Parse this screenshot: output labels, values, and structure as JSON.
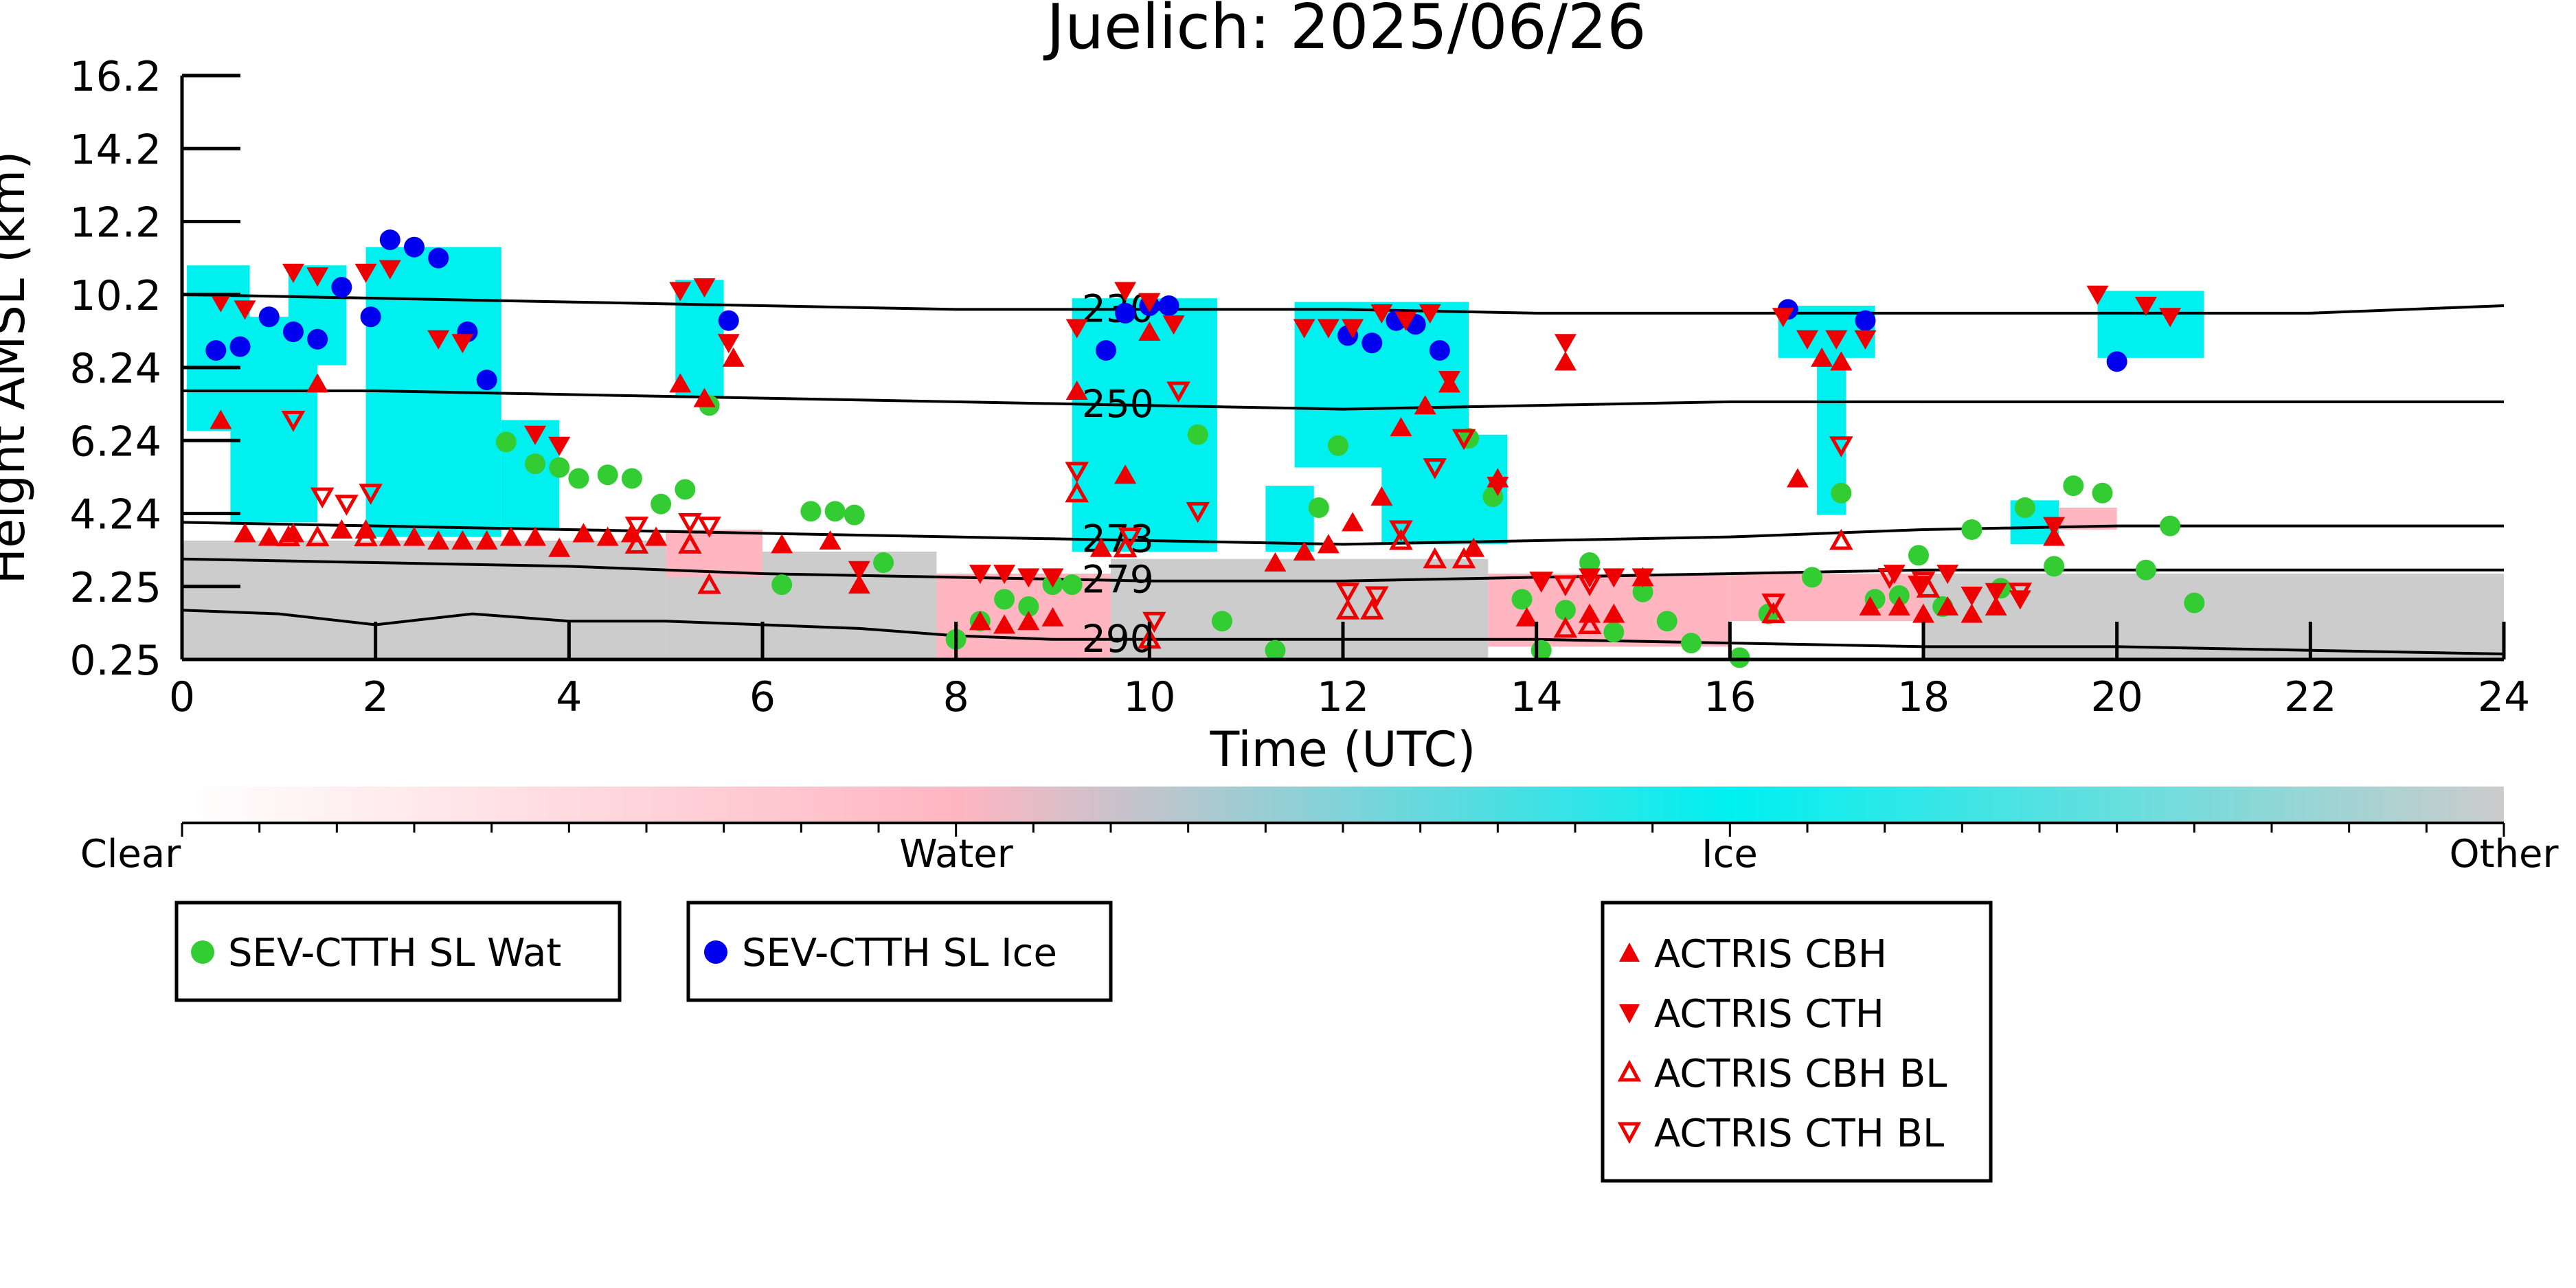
{
  "chart_data": {
    "type": "scatter",
    "title": "Juelich: 2025/06/26",
    "xlabel": "Time (UTC)",
    "ylabel": "Height AMSL (km)",
    "xlim": [
      0,
      24
    ],
    "ylim": [
      0.25,
      16.2
    ],
    "xticks": [
      0,
      2,
      4,
      6,
      8,
      10,
      12,
      14,
      16,
      18,
      20,
      22,
      24
    ],
    "yticks": [
      0.25,
      2.25,
      4.24,
      6.24,
      8.24,
      10.2,
      12.2,
      14.2,
      16.2
    ],
    "ytick_labels": [
      "0.25",
      "2.25",
      "4.24",
      "6.24",
      "8.24",
      "10.2",
      "12.2",
      "14.2",
      "16.2"
    ],
    "colors": {
      "water_marker": "#33cc33",
      "ice_marker": "#0000ee",
      "actris": "#ee0000",
      "ice_area": "#00f0f0",
      "water_area": "#ffb6c1",
      "other_area": "#cccccc"
    },
    "colorbar": {
      "labels": [
        "Clear",
        "Water",
        "Ice",
        "Other"
      ],
      "colors": [
        "#ffffff",
        "#ffb6c1",
        "#00f0f0",
        "#cccccc"
      ]
    },
    "contours": [
      {
        "label": "230",
        "x": [
          0,
          2,
          4,
          6,
          8,
          10,
          12,
          14,
          16,
          18,
          20,
          22,
          24
        ],
        "y": [
          10.2,
          10.1,
          10.0,
          9.9,
          9.8,
          9.8,
          9.8,
          9.7,
          9.7,
          9.7,
          9.7,
          9.7,
          9.9
        ]
      },
      {
        "label": "250",
        "x": [
          0,
          2,
          4,
          6,
          8,
          10,
          12,
          14,
          16,
          18,
          20,
          22,
          24
        ],
        "y": [
          7.6,
          7.6,
          7.5,
          7.4,
          7.3,
          7.2,
          7.1,
          7.2,
          7.3,
          7.3,
          7.3,
          7.3,
          7.3
        ]
      },
      {
        "label": "273",
        "x": [
          0,
          2,
          4,
          6,
          8,
          10,
          12,
          14,
          16,
          18,
          20,
          22,
          24
        ],
        "y": [
          4.0,
          3.9,
          3.8,
          3.7,
          3.6,
          3.5,
          3.4,
          3.5,
          3.6,
          3.8,
          3.9,
          3.9,
          3.9
        ]
      },
      {
        "label": "279",
        "x": [
          0,
          2,
          4,
          6,
          8,
          10,
          12,
          14,
          16,
          18,
          20,
          22,
          24
        ],
        "y": [
          3.0,
          2.9,
          2.8,
          2.6,
          2.5,
          2.4,
          2.4,
          2.5,
          2.6,
          2.7,
          2.7,
          2.7,
          2.7
        ]
      },
      {
        "label": "290",
        "x": [
          0,
          1,
          2,
          3,
          4,
          5,
          6,
          7,
          8,
          9,
          10,
          12,
          14,
          16,
          18,
          20,
          22,
          24
        ],
        "y": [
          1.6,
          1.5,
          1.2,
          1.5,
          1.3,
          1.3,
          1.2,
          1.1,
          0.9,
          0.8,
          0.8,
          0.8,
          0.8,
          0.7,
          0.6,
          0.6,
          0.5,
          0.4
        ]
      }
    ],
    "ice_regions": [
      {
        "x0": 0.05,
        "x1": 0.7,
        "y0": 6.5,
        "y1": 11.0
      },
      {
        "x0": 0.5,
        "x1": 1.4,
        "y0": 4.0,
        "y1": 9.6
      },
      {
        "x0": 1.1,
        "x1": 1.7,
        "y0": 8.3,
        "y1": 11.0
      },
      {
        "x0": 1.9,
        "x1": 3.3,
        "y0": 3.6,
        "y1": 11.5
      },
      {
        "x0": 3.3,
        "x1": 3.9,
        "y0": 3.8,
        "y1": 6.8
      },
      {
        "x0": 5.1,
        "x1": 5.6,
        "y0": 7.4,
        "y1": 10.6
      },
      {
        "x0": 9.2,
        "x1": 10.7,
        "y0": 3.2,
        "y1": 10.1
      },
      {
        "x0": 11.2,
        "x1": 11.7,
        "y0": 3.2,
        "y1": 5.0
      },
      {
        "x0": 11.5,
        "x1": 13.3,
        "y0": 5.5,
        "y1": 10.0
      },
      {
        "x0": 12.4,
        "x1": 13.7,
        "y0": 3.4,
        "y1": 6.4
      },
      {
        "x0": 16.5,
        "x1": 17.5,
        "y0": 8.5,
        "y1": 9.9
      },
      {
        "x0": 16.9,
        "x1": 17.2,
        "y0": 4.2,
        "y1": 8.7
      },
      {
        "x0": 18.9,
        "x1": 19.4,
        "y0": 3.4,
        "y1": 4.6
      },
      {
        "x0": 19.8,
        "x1": 20.9,
        "y0": 8.5,
        "y1": 10.3
      }
    ],
    "water_regions": [
      {
        "x0": 7.8,
        "x1": 9.6,
        "y0": 0.3,
        "y1": 2.6
      },
      {
        "x0": 13.5,
        "x1": 16.0,
        "y0": 0.6,
        "y1": 2.6
      },
      {
        "x0": 16.0,
        "x1": 18.0,
        "y0": 1.3,
        "y1": 2.6
      },
      {
        "x0": 5.0,
        "x1": 6.0,
        "y0": 2.5,
        "y1": 3.8
      },
      {
        "x0": 19.0,
        "x1": 20.0,
        "y0": 3.8,
        "y1": 4.4
      }
    ],
    "other_regions": [
      {
        "x0": 0.0,
        "x1": 5.0,
        "y0": 0.25,
        "y1": 3.5
      },
      {
        "x0": 5.0,
        "x1": 7.8,
        "y0": 0.25,
        "y1": 3.2
      },
      {
        "x0": 9.6,
        "x1": 13.5,
        "y0": 0.25,
        "y1": 3.0
      },
      {
        "x0": 18.0,
        "x1": 24.0,
        "y0": 0.25,
        "y1": 2.6
      }
    ],
    "series": [
      {
        "name": "SEV-CTTH SL Wat",
        "marker": "circle",
        "color": "#33cc33",
        "x": [
          3.35,
          3.65,
          3.9,
          4.1,
          4.4,
          4.65,
          4.95,
          5.2,
          5.45,
          6.2,
          6.5,
          6.75,
          6.95,
          7.25,
          8.0,
          8.25,
          8.5,
          8.75,
          9.0,
          9.2,
          10.5,
          10.75,
          11.3,
          11.75,
          11.95,
          13.3,
          13.55,
          13.85,
          14.05,
          14.3,
          14.55,
          14.8,
          15.1,
          15.35,
          15.6,
          16.1,
          16.4,
          16.85,
          17.15,
          17.5,
          17.75,
          17.95,
          18.2,
          18.5,
          18.8,
          19.05,
          19.35,
          19.55,
          19.85,
          20.3,
          20.55,
          20.8
        ],
        "y": [
          6.2,
          5.6,
          5.5,
          5.2,
          5.3,
          5.2,
          4.5,
          4.9,
          7.2,
          2.3,
          4.3,
          4.3,
          4.2,
          2.9,
          0.8,
          1.3,
          1.9,
          1.7,
          2.3,
          2.3,
          6.4,
          1.3,
          0.5,
          4.4,
          6.1,
          6.3,
          4.7,
          1.9,
          0.5,
          1.6,
          2.9,
          1.0,
          2.1,
          1.3,
          0.7,
          0.3,
          1.5,
          2.5,
          4.8,
          1.9,
          2.0,
          3.1,
          1.7,
          3.8,
          2.2,
          4.4,
          2.8,
          5.0,
          4.8,
          2.7,
          3.9,
          1.8
        ]
      },
      {
        "name": "SEV-CTTH SL Ice",
        "marker": "circle",
        "color": "#0000ee",
        "x": [
          0.35,
          0.6,
          0.9,
          1.15,
          1.4,
          1.65,
          1.95,
          2.15,
          2.4,
          2.65,
          2.95,
          3.15,
          5.65,
          9.55,
          9.75,
          10.0,
          10.2,
          12.05,
          12.3,
          12.55,
          12.75,
          13.0,
          16.6,
          17.4,
          20.0
        ],
        "y": [
          8.7,
          8.8,
          9.6,
          9.2,
          9.0,
          10.4,
          9.6,
          11.7,
          11.5,
          11.2,
          9.2,
          7.9,
          9.5,
          8.7,
          9.7,
          9.9,
          9.9,
          9.1,
          8.9,
          9.5,
          9.4,
          8.7,
          9.8,
          9.5,
          8.4
        ]
      },
      {
        "name": "ACTRIS CBH",
        "marker": "triangle-up",
        "color": "#ee0000",
        "x": [
          0.4,
          0.65,
          0.9,
          1.15,
          1.4,
          1.65,
          1.9,
          2.15,
          2.4,
          2.65,
          2.9,
          3.15,
          3.4,
          3.65,
          3.9,
          4.15,
          4.4,
          4.65,
          4.9,
          5.15,
          5.4,
          5.7,
          6.2,
          6.7,
          7.0,
          8.25,
          8.5,
          8.75,
          9.0,
          9.25,
          9.5,
          9.75,
          10.0,
          11.3,
          11.6,
          11.85,
          12.1,
          12.4,
          12.6,
          12.85,
          13.1,
          13.35,
          13.6,
          13.9,
          14.3,
          14.55,
          14.8,
          15.1,
          16.7,
          16.95,
          17.15,
          17.45,
          17.75,
          18.0,
          18.25,
          18.5,
          18.75,
          19.35
        ],
        "y": [
          6.8,
          3.7,
          3.6,
          3.7,
          7.8,
          3.8,
          3.8,
          3.6,
          3.6,
          3.5,
          3.5,
          3.5,
          3.6,
          3.6,
          3.3,
          3.7,
          3.6,
          3.7,
          3.6,
          7.8,
          7.4,
          8.5,
          3.4,
          3.5,
          2.3,
          1.3,
          1.2,
          1.3,
          1.4,
          7.6,
          3.3,
          5.3,
          9.2,
          2.9,
          3.2,
          3.4,
          4.0,
          4.7,
          6.6,
          7.2,
          7.8,
          3.3,
          5.2,
          1.4,
          8.4,
          1.5,
          1.5,
          2.5,
          5.2,
          8.5,
          8.4,
          1.7,
          1.7,
          1.5,
          1.7,
          1.5,
          1.7,
          3.6
        ]
      },
      {
        "name": "ACTRIS CTH",
        "marker": "triangle-down",
        "color": "#ee0000",
        "x": [
          0.4,
          0.65,
          1.15,
          1.4,
          1.9,
          2.15,
          2.65,
          2.9,
          3.65,
          3.9,
          5.15,
          5.4,
          5.65,
          7.0,
          8.25,
          8.5,
          8.75,
          9.0,
          9.25,
          9.75,
          10.0,
          10.25,
          11.6,
          11.85,
          12.1,
          12.4,
          12.65,
          12.9,
          13.1,
          13.6,
          14.05,
          14.3,
          14.55,
          14.8,
          15.1,
          16.55,
          16.8,
          17.1,
          17.4,
          17.7,
          17.95,
          18.25,
          18.5,
          18.75,
          19.0,
          19.35,
          19.8,
          20.3,
          20.55
        ],
        "y": [
          10.0,
          9.8,
          10.8,
          10.7,
          10.8,
          10.9,
          9.0,
          8.9,
          6.4,
          6.1,
          10.3,
          10.4,
          8.9,
          2.7,
          2.6,
          2.6,
          2.5,
          2.5,
          9.3,
          10.3,
          10.0,
          9.4,
          9.3,
          9.3,
          9.3,
          9.7,
          9.5,
          9.7,
          7.9,
          5.0,
          2.4,
          8.9,
          2.5,
          2.5,
          2.5,
          9.6,
          9.0,
          9.0,
          9.0,
          2.6,
          2.3,
          2.6,
          2.0,
          2.1,
          1.9,
          3.9,
          10.2,
          9.9,
          9.6
        ]
      },
      {
        "name": "ACTRIS CBH BL",
        "marker": "triangle-up-open",
        "color": "#ee0000",
        "x": [
          1.1,
          1.4,
          1.9,
          4.7,
          5.25,
          5.45,
          9.25,
          9.75,
          10.0,
          12.05,
          12.3,
          12.6,
          12.95,
          13.25,
          14.3,
          14.55,
          16.45,
          17.15,
          18.05
        ],
        "y": [
          3.6,
          3.6,
          3.6,
          3.4,
          3.4,
          2.3,
          4.8,
          3.3,
          0.8,
          1.6,
          1.6,
          3.5,
          3.0,
          3.0,
          1.1,
          1.2,
          1.5,
          3.5,
          2.2
        ]
      },
      {
        "name": "ACTRIS CTH BL",
        "marker": "triangle-down-open",
        "color": "#ee0000",
        "x": [
          1.15,
          1.45,
          1.7,
          1.95,
          4.7,
          5.25,
          5.45,
          9.25,
          9.8,
          10.05,
          10.3,
          10.5,
          12.05,
          12.35,
          12.6,
          12.95,
          13.25,
          14.05,
          14.3,
          14.55,
          16.45,
          17.15,
          17.65,
          18.0,
          19.0
        ],
        "y": [
          6.8,
          4.7,
          4.5,
          4.8,
          3.9,
          4.0,
          3.9,
          5.4,
          3.6,
          1.3,
          7.6,
          4.3,
          2.1,
          2.0,
          3.8,
          5.5,
          6.3,
          2.4,
          2.3,
          2.3,
          1.8,
          6.1,
          2.5,
          2.4,
          2.1
        ]
      }
    ],
    "legends": {
      "group1": [
        "SEV-CTTH SL Wat"
      ],
      "group2": [
        "SEV-CTTH SL Ice"
      ],
      "group3": [
        "ACTRIS CBH",
        "ACTRIS CTH",
        "ACTRIS CBH BL",
        "ACTRIS CTH BL"
      ]
    }
  }
}
